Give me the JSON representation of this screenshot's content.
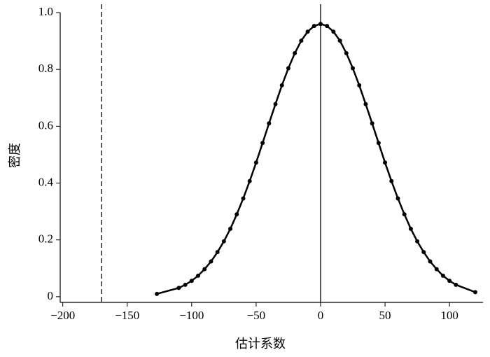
{
  "chart_data": {
    "type": "line",
    "xlabel": "估计系数",
    "ylabel": "密度",
    "x": [
      -127,
      -110,
      -105,
      -100,
      -95,
      -90,
      -85,
      -80,
      -75,
      -70,
      -65,
      -60,
      -55,
      -50,
      -45,
      -40,
      -35,
      -30,
      -25,
      -20,
      -15,
      -10,
      -5,
      0,
      5,
      10,
      15,
      20,
      25,
      30,
      35,
      40,
      45,
      50,
      55,
      60,
      65,
      70,
      75,
      80,
      85,
      90,
      95,
      100,
      105,
      120
    ],
    "series": [
      {
        "color": "#000000",
        "markers": true,
        "line": true,
        "values": [
          0.01,
          0.031,
          0.042,
          0.056,
          0.074,
          0.097,
          0.124,
          0.157,
          0.195,
          0.239,
          0.29,
          0.346,
          0.407,
          0.472,
          0.541,
          0.61,
          0.678,
          0.744,
          0.804,
          0.857,
          0.901,
          0.933,
          0.953,
          0.96,
          0.953,
          0.933,
          0.901,
          0.857,
          0.804,
          0.744,
          0.678,
          0.61,
          0.541,
          0.472,
          0.407,
          0.346,
          0.29,
          0.239,
          0.195,
          0.157,
          0.124,
          0.097,
          0.074,
          0.056,
          0.042,
          0.016
        ]
      }
    ],
    "vlines": [
      {
        "x": -170,
        "dashed": true
      },
      {
        "x": 0,
        "dashed": false
      }
    ],
    "xlim": [
      -202,
      126
    ],
    "ylim": [
      -0.02,
      1
    ],
    "xticks": [
      {
        "value": -200,
        "label": "−200"
      },
      {
        "value": -150,
        "label": "−150"
      },
      {
        "value": -100,
        "label": "−100"
      },
      {
        "value": -50,
        "label": "−50"
      },
      0,
      50,
      100
    ],
    "yticks": [
      0,
      0.2,
      0.4,
      0.6,
      0.8,
      {
        "value": 1,
        "label": "1.0"
      }
    ]
  }
}
